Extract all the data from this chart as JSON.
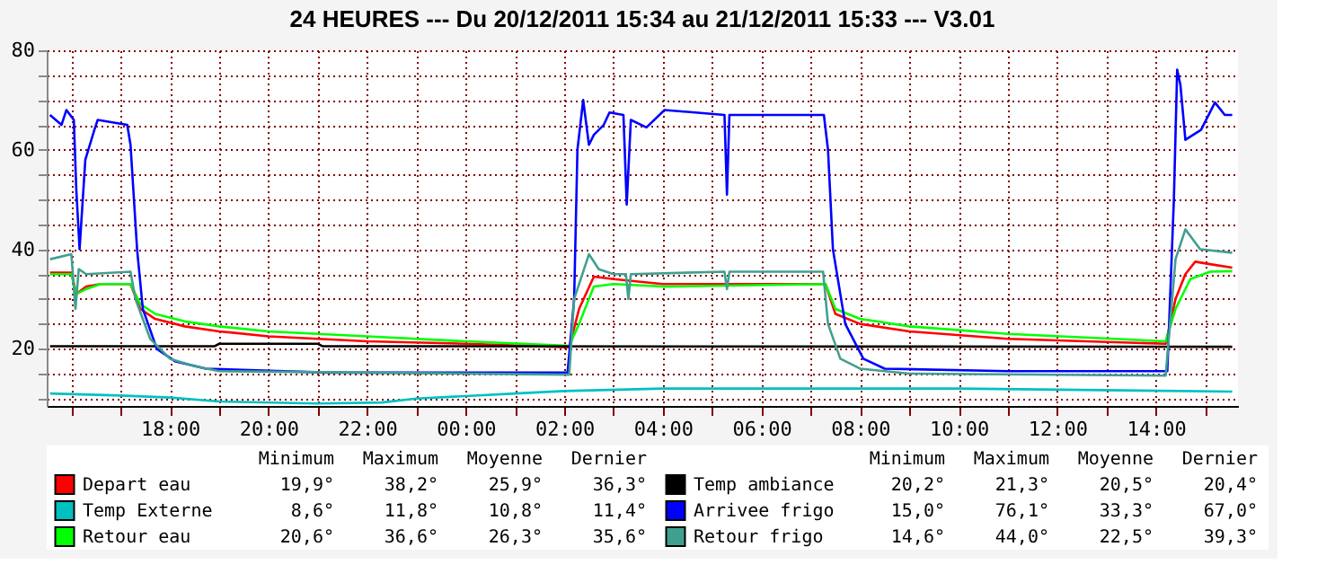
{
  "chart_data": {
    "type": "line",
    "title": "24 HEURES --- Du 20/12/2011 15:34 au 21/12/2011 15:33 --- V3.01",
    "xlim": [
      "2011-12-20T15:30",
      "2011-12-21T15:40"
    ],
    "ylim": [
      8.5,
      80
    ],
    "xticks": [
      {
        "value": "2011-12-20T16:00",
        "label": null
      },
      {
        "value": "2011-12-20T17:00",
        "label": null
      },
      {
        "value": "2011-12-20T18:00",
        "label": "18:00"
      },
      {
        "value": "2011-12-20T19:00",
        "label": null
      },
      {
        "value": "2011-12-20T20:00",
        "label": "20:00"
      },
      {
        "value": "2011-12-20T21:00",
        "label": null
      },
      {
        "value": "2011-12-20T22:00",
        "label": "22:00"
      },
      {
        "value": "2011-12-20T23:00",
        "label": null
      },
      {
        "value": "2011-12-21T00:00",
        "label": "00:00"
      },
      {
        "value": "2011-12-21T01:00",
        "label": null
      },
      {
        "value": "2011-12-21T02:00",
        "label": "02:00"
      },
      {
        "value": "2011-12-21T03:00",
        "label": null
      },
      {
        "value": "2011-12-21T04:00",
        "label": "04:00"
      },
      {
        "value": "2011-12-21T05:00",
        "label": null
      },
      {
        "value": "2011-12-21T06:00",
        "label": "06:00"
      },
      {
        "value": "2011-12-21T07:00",
        "label": null
      },
      {
        "value": "2011-12-21T08:00",
        "label": "08:00"
      },
      {
        "value": "2011-12-21T09:00",
        "label": null
      },
      {
        "value": "2011-12-21T10:00",
        "label": "10:00"
      },
      {
        "value": "2011-12-21T11:00",
        "label": null
      },
      {
        "value": "2011-12-21T12:00",
        "label": "12:00"
      },
      {
        "value": "2011-12-21T13:00",
        "label": null
      },
      {
        "value": "2011-12-21T14:00",
        "label": "14:00"
      },
      {
        "value": "2011-12-21T15:00",
        "label": null
      }
    ],
    "yticks": [
      {
        "value": 10,
        "label": null
      },
      {
        "value": 15,
        "label": null
      },
      20,
      {
        "value": 25,
        "label": null
      },
      {
        "value": 30,
        "label": null
      },
      {
        "value": 35,
        "label": null
      },
      40,
      {
        "value": 45,
        "label": null
      },
      {
        "value": 50,
        "label": null
      },
      {
        "value": 55,
        "label": null
      },
      60,
      {
        "value": 65,
        "label": null
      },
      {
        "value": 70,
        "label": null
      },
      {
        "value": 75,
        "label": null
      },
      80
    ],
    "grid": true,
    "legend": "bottom",
    "marker": "none",
    "line_style": "solid",
    "series": [
      {
        "name": "Depart eau",
        "color": "#ff0000",
        "x": [
          "2011-12-20T15:34",
          "2011-12-20T16:00",
          "2011-12-20T16:06",
          "2011-12-20T16:18",
          "2011-12-20T16:36",
          "2011-12-20T17:12",
          "2011-12-20T17:24",
          "2011-12-20T17:42",
          "2011-12-20T18:18",
          "2011-12-20T19:00",
          "2011-12-20T20:00",
          "2011-12-20T22:00",
          "2011-12-21T00:00",
          "2011-12-21T02:06",
          "2011-12-21T02:18",
          "2011-12-21T02:36",
          "2011-12-21T03:00",
          "2011-12-21T04:00",
          "2011-12-21T07:18",
          "2011-12-21T07:30",
          "2011-12-21T08:00",
          "2011-12-21T09:00",
          "2011-12-21T11:00",
          "2011-12-21T14:12",
          "2011-12-21T14:24",
          "2011-12-21T14:36",
          "2011-12-21T14:48",
          "2011-12-21T15:06",
          "2011-12-21T15:33"
        ],
        "values": [
          35.3,
          35.3,
          31,
          32.5,
          33,
          33,
          28,
          26,
          24.5,
          23.5,
          22.5,
          21.5,
          21,
          20.3,
          28,
          34.5,
          34,
          33,
          33,
          27,
          25,
          23.5,
          22,
          21,
          30,
          35,
          37.5,
          37,
          36.3
        ]
      },
      {
        "name": "Temp Externe",
        "color": "#00c0c0",
        "x": [
          "2011-12-20T15:34",
          "2011-12-20T17:00",
          "2011-12-20T18:00",
          "2011-12-20T19:00",
          "2011-12-20T21:00",
          "2011-12-20T22:18",
          "2011-12-20T23:00",
          "2011-12-21T00:00",
          "2011-12-21T01:00",
          "2011-12-21T02:00",
          "2011-12-21T04:00",
          "2011-12-21T10:00",
          "2011-12-21T15:33"
        ],
        "values": [
          11.0,
          10.6,
          10.2,
          9.4,
          9.0,
          9.2,
          10,
          10.5,
          11,
          11.5,
          12,
          12,
          11.4
        ]
      },
      {
        "name": "Retour eau",
        "color": "#00ff00",
        "x": [
          "2011-12-20T15:34",
          "2011-12-20T16:00",
          "2011-12-20T16:06",
          "2011-12-20T16:18",
          "2011-12-20T16:36",
          "2011-12-20T17:12",
          "2011-12-20T17:24",
          "2011-12-20T17:42",
          "2011-12-20T18:18",
          "2011-12-20T19:00",
          "2011-12-20T20:00",
          "2011-12-20T22:00",
          "2011-12-21T00:00",
          "2011-12-21T02:06",
          "2011-12-21T02:18",
          "2011-12-21T02:36",
          "2011-12-21T03:00",
          "2011-12-21T04:00",
          "2011-12-21T07:18",
          "2011-12-21T07:30",
          "2011-12-21T08:00",
          "2011-12-21T09:00",
          "2011-12-21T11:00",
          "2011-12-21T14:12",
          "2011-12-21T14:24",
          "2011-12-21T14:42",
          "2011-12-21T15:06",
          "2011-12-21T15:33"
        ],
        "values": [
          35,
          35,
          31,
          32,
          33,
          33,
          29,
          27,
          25.5,
          24.5,
          23.5,
          22.5,
          21.5,
          20.6,
          25,
          32.5,
          33,
          32.5,
          33,
          28,
          26,
          24.5,
          23,
          21.5,
          28,
          34,
          35.5,
          35.6
        ]
      },
      {
        "name": "Temp ambiance",
        "color": "#000000",
        "x": [
          "2011-12-20T15:34",
          "2011-12-20T18:00",
          "2011-12-20T18:54",
          "2011-12-20T19:00",
          "2011-12-20T21:00",
          "2011-12-20T21:06",
          "2011-12-20T23:00",
          "2011-12-21T15:33"
        ],
        "values": [
          20.5,
          20.5,
          20.5,
          21.0,
          21.0,
          20.5,
          20.5,
          20.4
        ]
      },
      {
        "name": "Arrivee frigo",
        "color": "#0000ff",
        "x": [
          "2011-12-20T15:34",
          "2011-12-20T15:48",
          "2011-12-20T15:54",
          "2011-12-20T16:03",
          "2011-12-20T16:06",
          "2011-12-20T16:10",
          "2011-12-20T16:17",
          "2011-12-20T16:28",
          "2011-12-20T16:32",
          "2011-12-20T17:08",
          "2011-12-20T17:12",
          "2011-12-20T17:20",
          "2011-12-20T17:27",
          "2011-12-20T17:44",
          "2011-12-20T18:06",
          "2011-12-20T18:44",
          "2011-12-20T21:12",
          "2011-12-21T02:04",
          "2011-12-21T02:12",
          "2011-12-21T02:16",
          "2011-12-21T02:23",
          "2011-12-21T02:30",
          "2011-12-21T02:36",
          "2011-12-21T02:48",
          "2011-12-21T02:55",
          "2011-12-21T03:12",
          "2011-12-21T03:16",
          "2011-12-21T03:21",
          "2011-12-21T03:40",
          "2011-12-21T04:02",
          "2011-12-21T05:15",
          "2011-12-21T05:18",
          "2011-12-21T05:21",
          "2011-12-21T07:16",
          "2011-12-21T07:21",
          "2011-12-21T07:27",
          "2011-12-21T07:42",
          "2011-12-21T08:04",
          "2011-12-21T08:30",
          "2011-12-21T11:00",
          "2011-12-21T14:14",
          "2011-12-21T14:22",
          "2011-12-21T14:26",
          "2011-12-21T14:30",
          "2011-12-21T14:36",
          "2011-12-21T14:55",
          "2011-12-21T15:12",
          "2011-12-21T15:24",
          "2011-12-21T15:33"
        ],
        "values": [
          67,
          65,
          68,
          66,
          52,
          40,
          58,
          64,
          66,
          65,
          61,
          40,
          28,
          20,
          17.5,
          16,
          15.2,
          15.2,
          30,
          60,
          70,
          61,
          63,
          65,
          67.5,
          67,
          49,
          66,
          64.5,
          68,
          67,
          51,
          67,
          67,
          60,
          40,
          25,
          18,
          16,
          15.5,
          15.5,
          50,
          76.1,
          73,
          62,
          64,
          69.5,
          67,
          67
        ]
      },
      {
        "name": "Retour frigo",
        "color": "#40a090",
        "x": [
          "2011-12-20T15:34",
          "2011-12-20T16:00",
          "2011-12-20T16:05",
          "2011-12-20T16:09",
          "2011-12-20T16:18",
          "2011-12-20T17:12",
          "2011-12-20T17:18",
          "2011-12-20T17:36",
          "2011-12-20T18:00",
          "2011-12-20T18:30",
          "2011-12-20T19:00",
          "2011-12-21T02:06",
          "2011-12-21T02:12",
          "2011-12-21T02:30",
          "2011-12-21T02:42",
          "2011-12-21T03:00",
          "2011-12-21T03:15",
          "2011-12-21T03:18",
          "2011-12-21T03:21",
          "2011-12-21T05:15",
          "2011-12-21T05:18",
          "2011-12-21T05:21",
          "2011-12-21T07:15",
          "2011-12-21T07:21",
          "2011-12-21T07:36",
          "2011-12-21T08:00",
          "2011-12-21T09:00",
          "2011-12-21T14:12",
          "2011-12-21T14:24",
          "2011-12-21T14:36",
          "2011-12-21T14:54",
          "2011-12-21T15:33"
        ],
        "values": [
          38,
          39,
          28,
          36,
          35,
          35.5,
          30,
          22,
          18,
          16.5,
          15.5,
          14.8,
          30,
          39,
          36,
          35,
          35,
          30,
          35,
          35.5,
          32,
          35.5,
          35.5,
          25,
          18,
          16,
          15,
          14.6,
          38,
          44,
          40,
          39.3
        ]
      }
    ],
    "annotations": [
      "Minimum",
      "Maximum",
      "Moyenne",
      "Dernier",
      "Minimum",
      "Maximum",
      "Moyenne",
      "Dernier",
      "19,9°",
      "38,2°",
      "25,9°",
      "36,3°",
      "8,6°",
      "11,8°",
      "10,8°",
      "11,4°",
      "20,6°",
      "36,6°",
      "26,3°",
      "35,6°",
      "20,2°",
      "21,3°",
      "20,5°",
      "20,4°",
      "15,0°",
      "76,1°",
      "33,3°",
      "67,0°",
      "14,6°",
      "44,0°",
      "22,5°",
      "39,3°"
    ]
  }
}
